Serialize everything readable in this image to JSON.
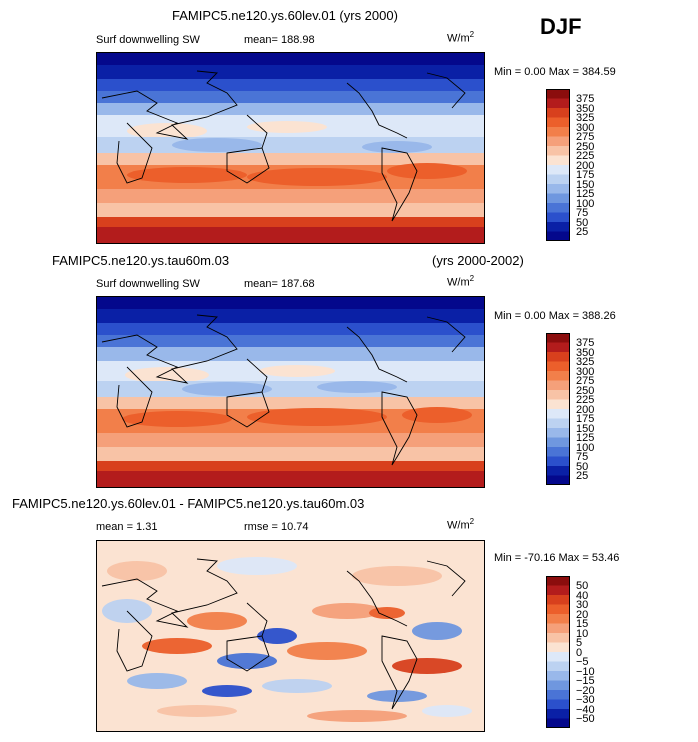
{
  "season": "DJF",
  "units": {
    "base": "W/m",
    "exp": "2"
  },
  "panels": [
    {
      "title": "FAMIPC5.ne120.ys.60lev.01 (yrs 2000)",
      "subtitle": "Surf downwelling SW",
      "stat1": "mean= 188.98",
      "stat2": "",
      "minmax": "Min =   0.00 Max = 384.59",
      "colorbar_labels": [
        "375",
        "350",
        "325",
        "300",
        "275",
        "250",
        "225",
        "200",
        "175",
        "150",
        "125",
        "100",
        "75",
        "50",
        "25"
      ]
    },
    {
      "title_left": "FAMIPC5.ne120.ys.tau60m.03",
      "title_right": "(yrs 2000-2002)",
      "subtitle": "Surf downwelling SW",
      "stat1": "mean= 187.68",
      "stat2": "",
      "minmax": "Min =   0.00 Max = 388.26",
      "colorbar_labels": [
        "375",
        "350",
        "325",
        "300",
        "275",
        "250",
        "225",
        "200",
        "175",
        "150",
        "125",
        "100",
        "75",
        "50",
        "25"
      ]
    },
    {
      "title": "FAMIPC5.ne120.ys.60lev.01 - FAMIPC5.ne120.ys.tau60m.03",
      "stat1": "mean =   1.31",
      "stat2": "rmse =  10.74",
      "minmax": "Min = -70.16 Max =  53.46",
      "colorbar_labels": [
        "50",
        "40",
        "30",
        "20",
        "15",
        "10",
        "5",
        "0",
        "−5",
        "−10",
        "−15",
        "−20",
        "−30",
        "−40",
        "−50"
      ]
    }
  ],
  "colors": {
    "sw_scale": [
      "#8b0d0d",
      "#b31c1c",
      "#d8401d",
      "#ec5f2b",
      "#f27f4a",
      "#f5a07a",
      "#f8c3a6",
      "#fbe3d2",
      "#dde8f8",
      "#bcd2f1",
      "#99b8ea",
      "#6f97df",
      "#4a74d6",
      "#2b50cc",
      "#0a20a6",
      "#04088c"
    ],
    "diff_scale": [
      "#8b0d0d",
      "#b31c1c",
      "#d8401d",
      "#ec5f2b",
      "#f27f4a",
      "#f5a07a",
      "#f8c3a6",
      "#fbe3d2",
      "#dde8f8",
      "#bcd2f1",
      "#99b8ea",
      "#6f97df",
      "#4a74d6",
      "#2b50cc",
      "#0a20a6",
      "#04088c"
    ]
  }
}
